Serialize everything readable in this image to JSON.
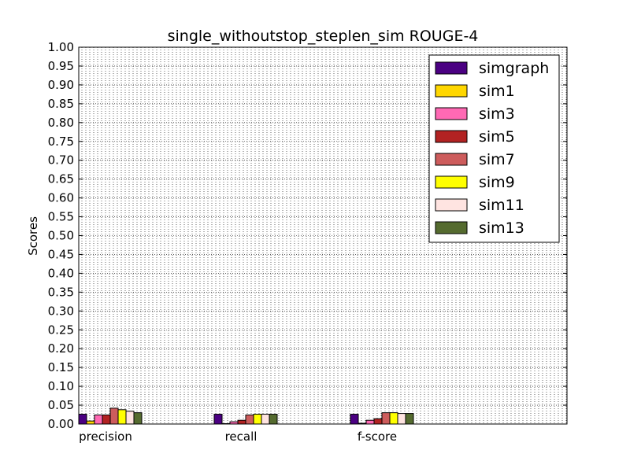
{
  "chart_data": {
    "type": "bar",
    "title": "single_withoutstop_steplen_sim ROUGE-4",
    "xlabel": "",
    "ylabel": "Scores",
    "ylim": [
      0,
      1.0
    ],
    "yticks": [
      "0.00",
      "0.05",
      "0.10",
      "0.15",
      "0.20",
      "0.25",
      "0.30",
      "0.35",
      "0.40",
      "0.45",
      "0.50",
      "0.55",
      "0.60",
      "0.65",
      "0.70",
      "0.75",
      "0.80",
      "0.85",
      "0.90",
      "0.95",
      "1.00"
    ],
    "categories": [
      "precision",
      "recall",
      "f-score"
    ],
    "grid": true,
    "legend_position": "top-right",
    "series": [
      {
        "name": "simgraph",
        "color": "#4b0082",
        "values": [
          0.026,
          0.026,
          0.026
        ]
      },
      {
        "name": "sim1",
        "color": "#ffd700",
        "values": [
          0.008,
          0.001,
          0.002
        ]
      },
      {
        "name": "sim3",
        "color": "#ff69b4",
        "values": [
          0.024,
          0.006,
          0.01
        ]
      },
      {
        "name": "sim5",
        "color": "#b22222",
        "values": [
          0.024,
          0.01,
          0.014
        ]
      },
      {
        "name": "sim7",
        "color": "#cd5c5c",
        "values": [
          0.042,
          0.024,
          0.03
        ]
      },
      {
        "name": "sim9",
        "color": "#ffff00",
        "values": [
          0.038,
          0.026,
          0.03
        ]
      },
      {
        "name": "sim11",
        "color": "#ffe4e1",
        "values": [
          0.034,
          0.026,
          0.028
        ]
      },
      {
        "name": "sim13",
        "color": "#556b2f",
        "values": [
          0.03,
          0.026,
          0.028
        ]
      }
    ]
  }
}
